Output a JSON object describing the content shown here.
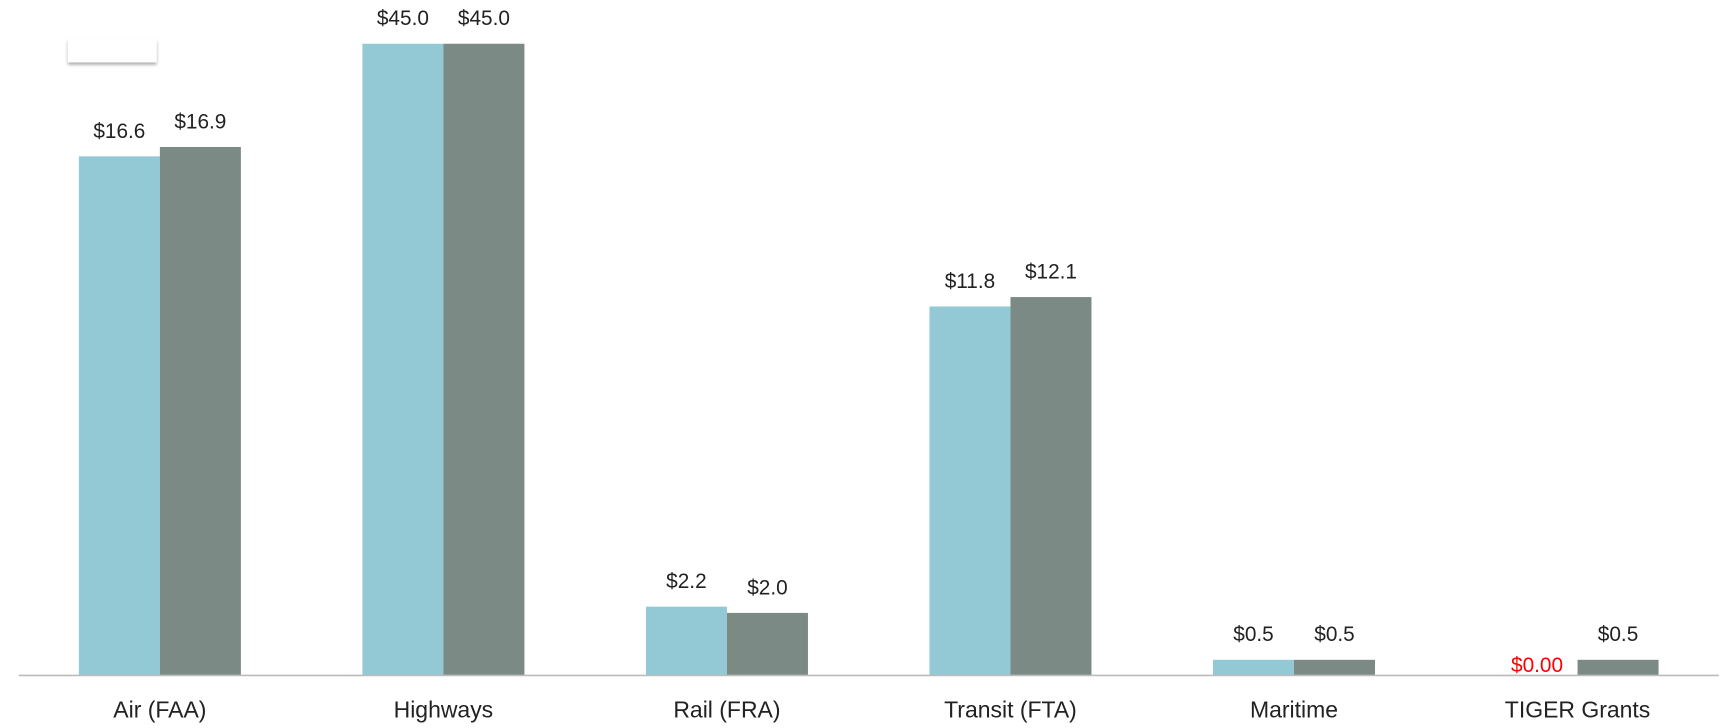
{
  "chart_data": {
    "type": "bar",
    "categories": [
      "Air (FAA)",
      "Highways",
      "Rail (FRA)",
      "Transit (FTA)",
      "Maritime",
      "TIGER Grants"
    ],
    "series": [
      {
        "color": "#92c9d4",
        "values": [
          16.6,
          45.0,
          2.2,
          11.8,
          0.5,
          0.0
        ],
        "value_labels": [
          "$16.6",
          "$45.0",
          "$2.2",
          "$11.8",
          "$0.5",
          "$0.00"
        ],
        "value_label_colors": [
          "#222222",
          "#222222",
          "#222222",
          "#222222",
          "#222222",
          "#ff0000"
        ]
      },
      {
        "color": "#7b8a85",
        "values": [
          16.9,
          45.0,
          2.0,
          12.1,
          0.5,
          0.5
        ],
        "value_labels": [
          "$16.9",
          "$45.0",
          "$2.0",
          "$12.1",
          "$0.5",
          "$0.5"
        ],
        "value_label_colors": [
          "#222222",
          "#222222",
          "#222222",
          "#222222",
          "#222222",
          "#222222"
        ]
      }
    ],
    "ylim": [
      0,
      20.2
    ],
    "grid": false
  }
}
